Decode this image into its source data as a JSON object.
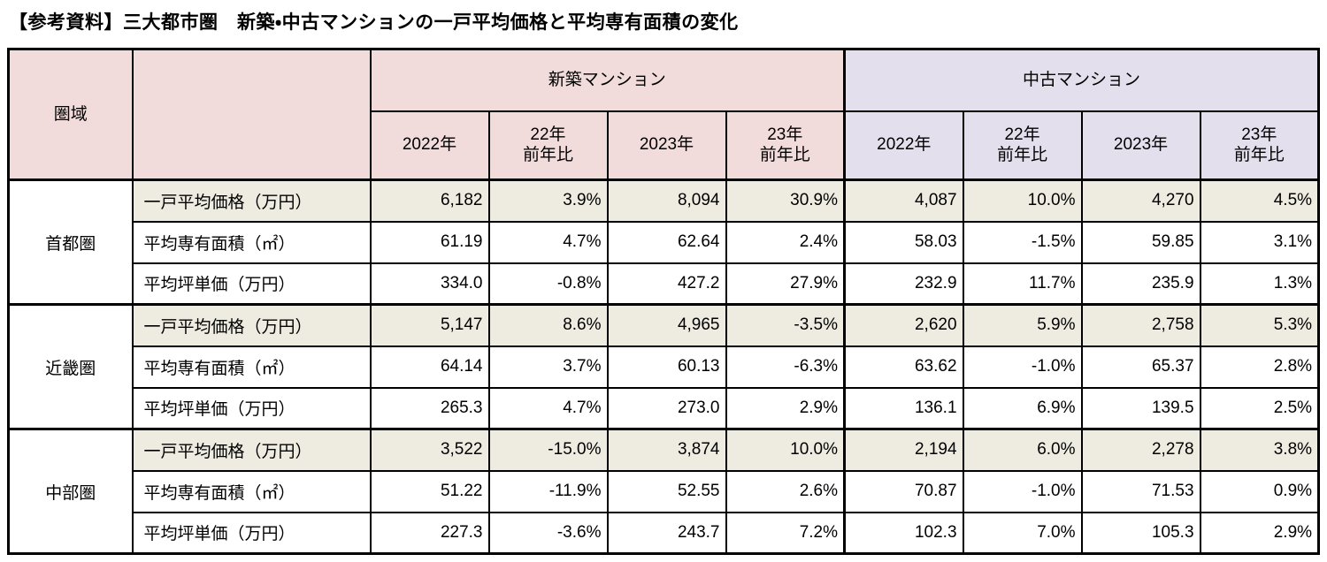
{
  "title": "【参考資料】三大都市圏　新築・中古マンションの一戸平均価格と平均専有面積の変化",
  "colors": {
    "new_header_bg": "#f2dcdb",
    "used_header_bg": "#e4dfec",
    "shaded_row_bg": "#eeece1",
    "border": "#000000"
  },
  "chart_data": {
    "type": "table",
    "title": "【参考資料】三大都市圏　新築・中古マンションの一戸平均価格と平均専有面積の変化",
    "column_groups": [
      "新築マンション",
      "中古マンション"
    ],
    "columns": [
      "2022年",
      "22年前年比",
      "2023年",
      "23年前年比",
      "2022年",
      "22年前年比",
      "2023年",
      "23年前年比"
    ],
    "row_groups": [
      "首都圏",
      "近畿圏",
      "中部圏"
    ],
    "metrics": [
      "一戸平均価格（万円）",
      "平均専有面積（㎡）",
      "平均坪単価（万円）"
    ]
  },
  "table": {
    "region_header": "圏域",
    "group_new": "新築マンション",
    "group_used": "中古マンション",
    "year_headers": [
      "2022年",
      "22年\n前年比",
      "2023年",
      "23年\n前年比"
    ],
    "regions": [
      {
        "name": "首都圏",
        "rows": [
          {
            "label": "一戸平均価格（万円）",
            "values": [
              "6,182",
              "3.9%",
              "8,094",
              "30.9%",
              "4,087",
              "10.0%",
              "4,270",
              "4.5%"
            ]
          },
          {
            "label": "平均専有面積（㎡）",
            "values": [
              "61.19",
              "4.7%",
              "62.64",
              "2.4%",
              "58.03",
              "-1.5%",
              "59.85",
              "3.1%"
            ]
          },
          {
            "label": "平均坪単価（万円）",
            "values": [
              "334.0",
              "-0.8%",
              "427.2",
              "27.9%",
              "232.9",
              "11.7%",
              "235.9",
              "1.3%"
            ]
          }
        ]
      },
      {
        "name": "近畿圏",
        "rows": [
          {
            "label": "一戸平均価格（万円）",
            "values": [
              "5,147",
              "8.6%",
              "4,965",
              "-3.5%",
              "2,620",
              "5.9%",
              "2,758",
              "5.3%"
            ]
          },
          {
            "label": "平均専有面積（㎡）",
            "values": [
              "64.14",
              "3.7%",
              "60.13",
              "-6.3%",
              "63.62",
              "-1.0%",
              "65.37",
              "2.8%"
            ]
          },
          {
            "label": "平均坪単価（万円）",
            "values": [
              "265.3",
              "4.7%",
              "273.0",
              "2.9%",
              "136.1",
              "6.9%",
              "139.5",
              "2.5%"
            ]
          }
        ]
      },
      {
        "name": "中部圏",
        "rows": [
          {
            "label": "一戸平均価格（万円）",
            "values": [
              "3,522",
              "-15.0%",
              "3,874",
              "10.0%",
              "2,194",
              "6.0%",
              "2,278",
              "3.8%"
            ]
          },
          {
            "label": "平均専有面積（㎡）",
            "values": [
              "51.22",
              "-11.9%",
              "52.55",
              "2.6%",
              "70.87",
              "-1.0%",
              "71.53",
              "0.9%"
            ]
          },
          {
            "label": "平均坪単価（万円）",
            "values": [
              "227.3",
              "-3.6%",
              "243.7",
              "7.2%",
              "102.3",
              "7.0%",
              "105.3",
              "2.9%"
            ]
          }
        ]
      }
    ]
  }
}
